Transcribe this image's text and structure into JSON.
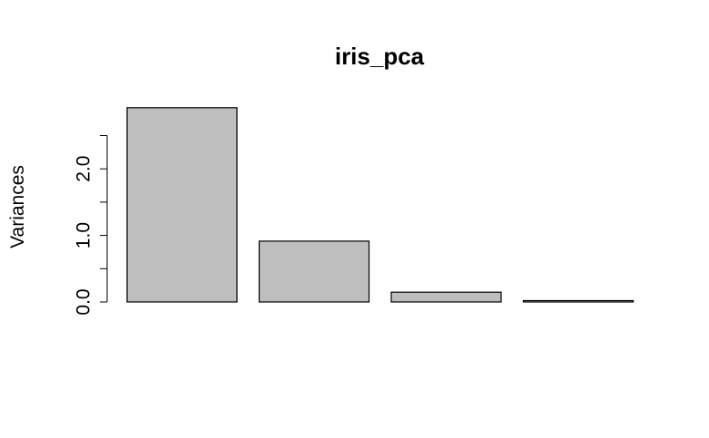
{
  "chart_data": {
    "type": "bar",
    "title": "iris_pca",
    "xlabel": "",
    "ylabel": "Variances",
    "categories": [
      "",
      "",
      "",
      ""
    ],
    "values": [
      2.918,
      0.914,
      0.147,
      0.021
    ],
    "ylim": [
      0,
      2.918
    ],
    "yticks": [
      0.0,
      0.5,
      1.0,
      1.5,
      2.0,
      2.5
    ],
    "ytick_labels": [
      "0.0",
      "",
      "1.0",
      "",
      "2.0",
      ""
    ],
    "grid": false,
    "legend": "none",
    "colors": {
      "bar_fill": "#bebebe",
      "bar_stroke": "#000000",
      "axis": "#000000",
      "text": "#000000"
    }
  }
}
